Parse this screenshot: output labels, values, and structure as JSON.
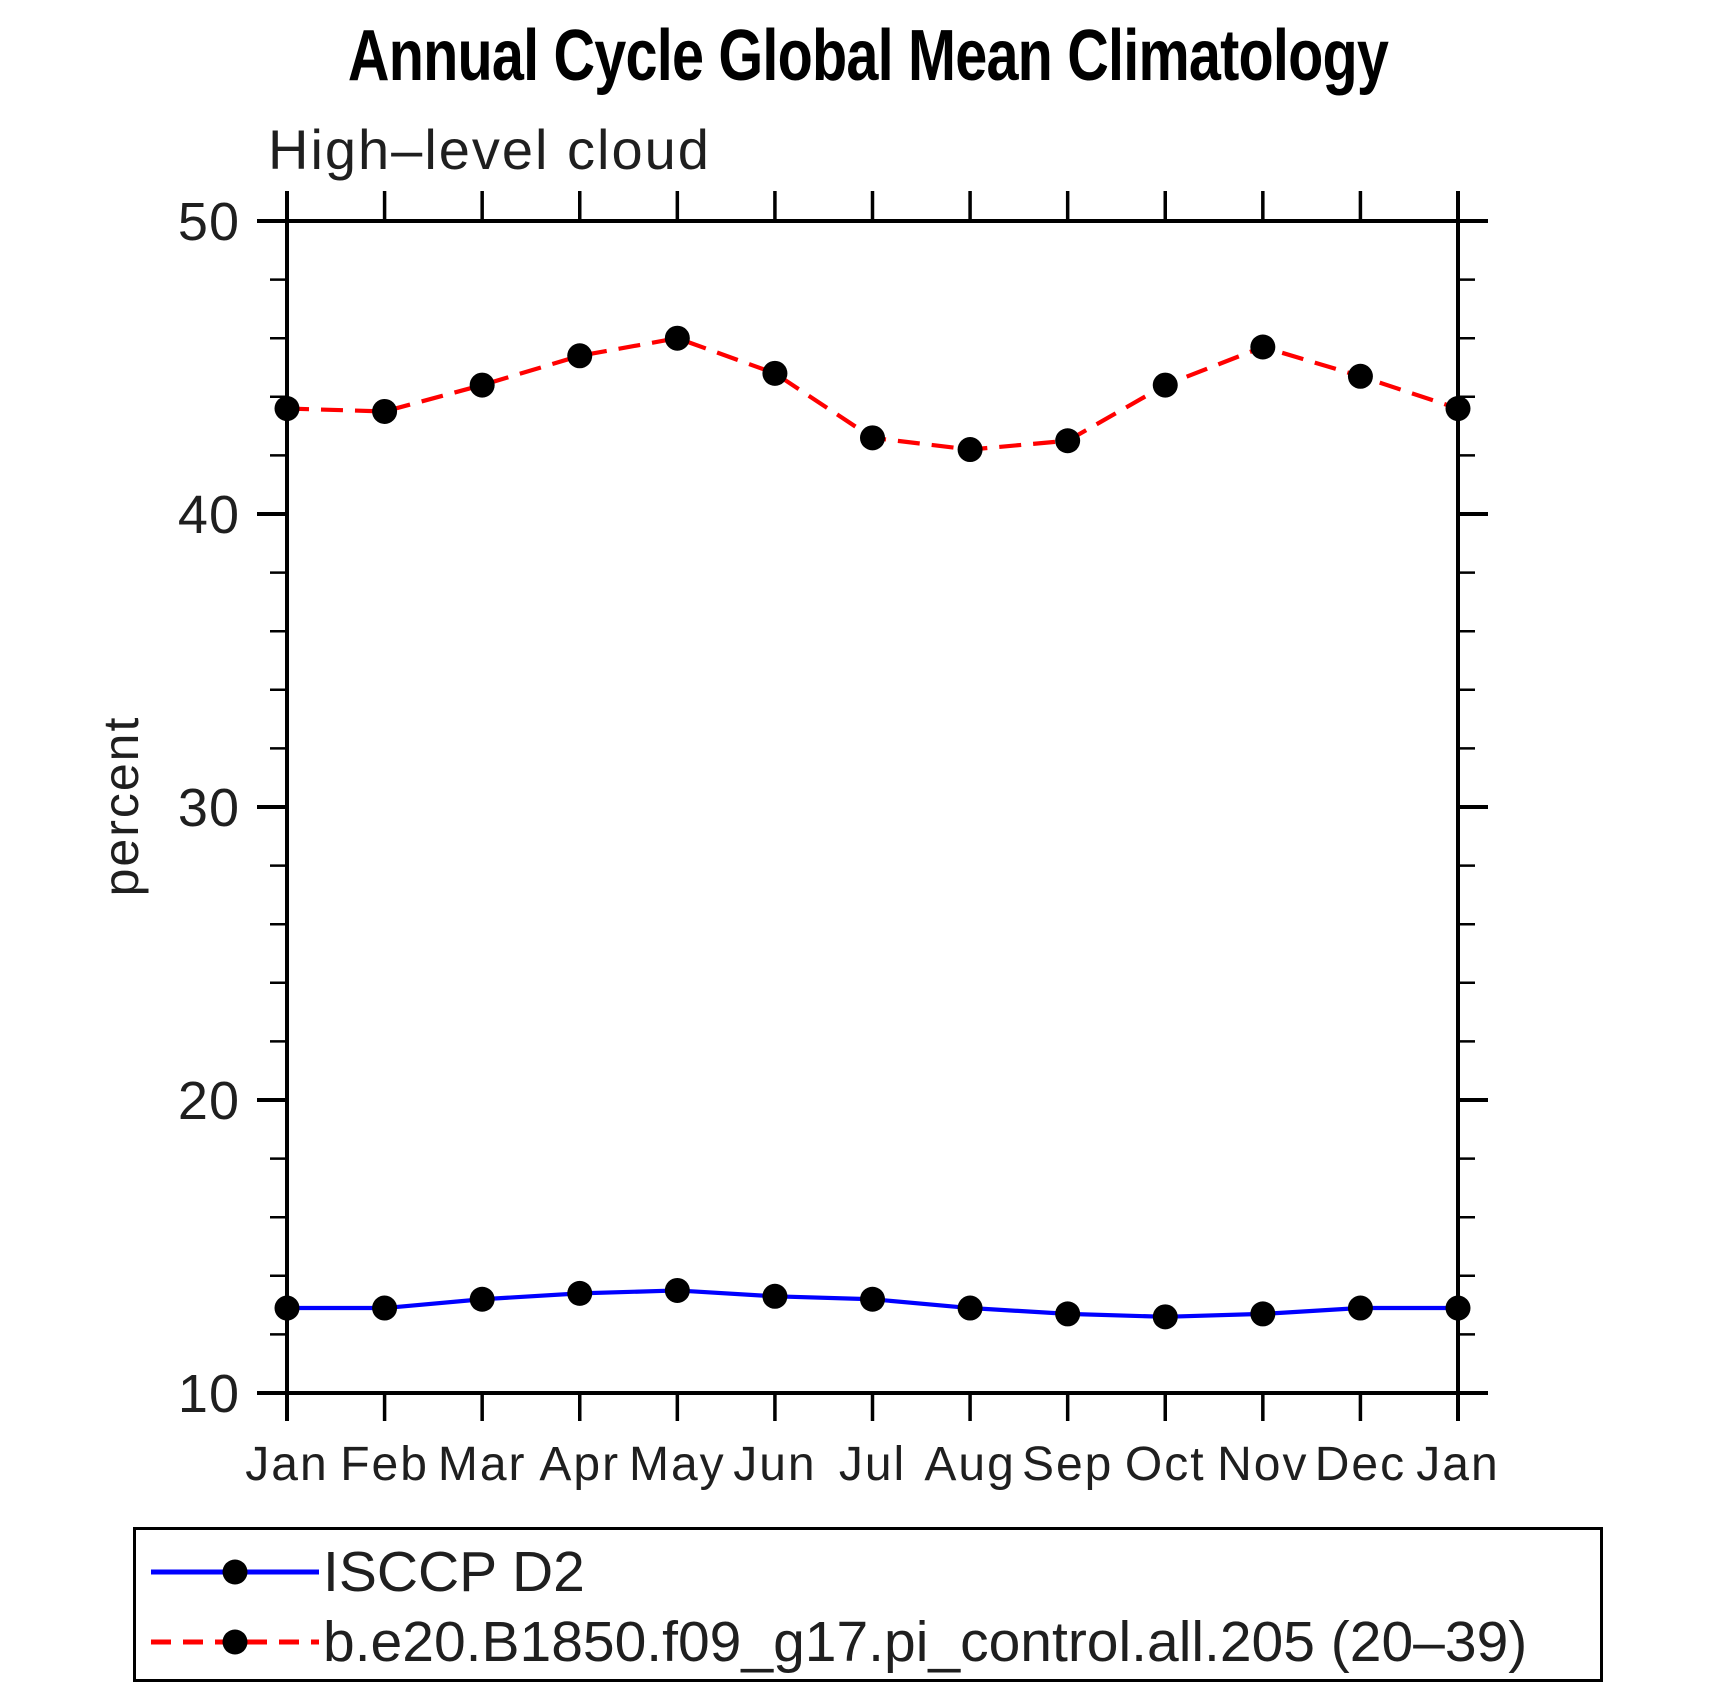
{
  "page_title": "Annual Cycle Global Mean Climatology",
  "chart_data": {
    "type": "line",
    "title": "High–level cloud",
    "xlabel": "",
    "ylabel": "percent",
    "categories": [
      "Jan",
      "Feb",
      "Mar",
      "Apr",
      "May",
      "Jun",
      "Jul",
      "Aug",
      "Sep",
      "Oct",
      "Nov",
      "Dec",
      "Jan"
    ],
    "ylim": [
      10,
      50
    ],
    "yticks_major": [
      10,
      20,
      30,
      40,
      50
    ],
    "ytick_minor_step": 2,
    "grid": false,
    "legend_position": "bottom",
    "axis_color": "#000000",
    "marker_color": "#000000",
    "series": [
      {
        "name": "ISCCP D2",
        "color": "#0000ff",
        "line_style": "solid",
        "marker": "circle",
        "values": [
          12.9,
          12.9,
          13.2,
          13.4,
          13.5,
          13.3,
          13.2,
          12.9,
          12.7,
          12.6,
          12.7,
          12.9,
          12.9
        ]
      },
      {
        "name": "b.e20.B1850.f09_g17.pi_control.all.205 (20–39)",
        "color": "#ff0000",
        "line_style": "dashed",
        "marker": "circle",
        "values": [
          43.6,
          43.5,
          44.4,
          45.4,
          46.0,
          44.8,
          42.6,
          42.2,
          42.5,
          44.4,
          45.7,
          44.7,
          43.6
        ]
      }
    ]
  }
}
